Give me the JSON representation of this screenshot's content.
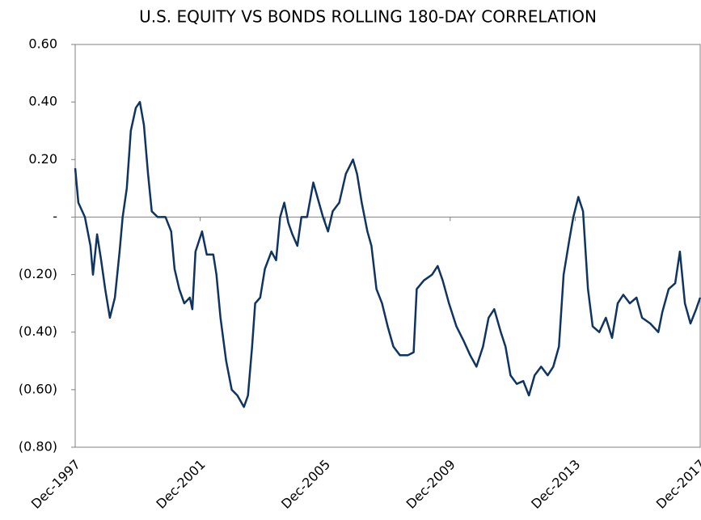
{
  "chart_data": {
    "type": "line",
    "title": "U.S. EQUITY VS BONDS ROLLING 180-DAY CORRELATION",
    "x": [
      1997.92,
      1998.02,
      1998.23,
      1998.41,
      1998.49,
      1998.62,
      1998.75,
      1998.88,
      1999.03,
      1999.19,
      1999.34,
      1999.44,
      1999.57,
      1999.7,
      1999.86,
      1999.99,
      2000.12,
      2000.25,
      2000.37,
      2000.56,
      2000.81,
      2000.99,
      2001.1,
      2001.25,
      2001.41,
      2001.59,
      2001.67,
      2001.77,
      2001.98,
      2002.13,
      2002.34,
      2002.44,
      2002.57,
      2002.75,
      2002.93,
      2003.11,
      2003.32,
      2003.45,
      2003.58,
      2003.68,
      2003.84,
      2003.99,
      2004.2,
      2004.35,
      2004.48,
      2004.61,
      2004.74,
      2004.87,
      2005.03,
      2005.16,
      2005.34,
      2005.54,
      2005.72,
      2005.85,
      2006.01,
      2006.16,
      2006.37,
      2006.58,
      2006.81,
      2006.94,
      2007.09,
      2007.27,
      2007.4,
      2007.56,
      2007.74,
      2007.92,
      2008.1,
      2008.31,
      2008.57,
      2008.75,
      2008.85,
      2009.08,
      2009.34,
      2009.52,
      2009.68,
      2009.88,
      2010.12,
      2010.35,
      2010.56,
      2010.76,
      2010.97,
      2011.15,
      2011.33,
      2011.54,
      2011.69,
      2011.85,
      2012.05,
      2012.26,
      2012.44,
      2012.62,
      2012.83,
      2013.04,
      2013.22,
      2013.4,
      2013.55,
      2013.73,
      2013.86,
      2014.02,
      2014.17,
      2014.33,
      2014.48,
      2014.69,
      2014.9,
      2015.1,
      2015.28,
      2015.46,
      2015.67,
      2015.88,
      2016.06,
      2016.32,
      2016.58,
      2016.71,
      2016.91,
      2017.12,
      2017.27,
      2017.43,
      2017.61,
      2017.79,
      2017.92
    ],
    "series": [
      {
        "color": "#0f3461",
        "values": [
          0.17,
          0.05,
          0.0,
          -0.1,
          -0.2,
          -0.06,
          -0.15,
          -0.25,
          -0.35,
          -0.28,
          -0.12,
          0.0,
          0.1,
          0.3,
          0.38,
          0.4,
          0.32,
          0.15,
          0.02,
          0.0,
          0.0,
          -0.05,
          -0.18,
          -0.25,
          -0.3,
          -0.28,
          -0.32,
          -0.12,
          -0.05,
          -0.13,
          -0.13,
          -0.2,
          -0.35,
          -0.5,
          -0.6,
          -0.62,
          -0.66,
          -0.62,
          -0.45,
          -0.3,
          -0.28,
          -0.18,
          -0.12,
          -0.15,
          0.0,
          0.05,
          -0.02,
          -0.06,
          -0.1,
          0.0,
          0.0,
          0.12,
          0.05,
          0.0,
          -0.05,
          0.02,
          0.05,
          0.15,
          0.2,
          0.15,
          0.05,
          -0.05,
          -0.1,
          -0.25,
          -0.3,
          -0.38,
          -0.45,
          -0.48,
          -0.48,
          -0.47,
          -0.25,
          -0.22,
          -0.2,
          -0.17,
          -0.22,
          -0.3,
          -0.38,
          -0.43,
          -0.48,
          -0.52,
          -0.45,
          -0.35,
          -0.32,
          -0.4,
          -0.45,
          -0.55,
          -0.58,
          -0.57,
          -0.62,
          -0.55,
          -0.52,
          -0.55,
          -0.52,
          -0.45,
          -0.2,
          -0.08,
          0.0,
          0.07,
          0.02,
          -0.25,
          -0.38,
          -0.4,
          -0.35,
          -0.42,
          -0.3,
          -0.27,
          -0.3,
          -0.28,
          -0.35,
          -0.37,
          -0.4,
          -0.33,
          -0.25,
          -0.23,
          -0.12,
          -0.3,
          -0.37,
          -0.32,
          -0.28
        ]
      }
    ],
    "xlim": [
      1997.92,
      2017.92
    ],
    "xticks": [
      {
        "value": 1997.92,
        "label": "Dec-1997"
      },
      {
        "value": 2001.92,
        "label": "Dec-2001"
      },
      {
        "value": 2005.92,
        "label": "Dec-2005"
      },
      {
        "value": 2009.92,
        "label": "Dec-2009"
      },
      {
        "value": 2013.92,
        "label": "Dec-2013"
      },
      {
        "value": 2017.92,
        "label": "Dec-2017"
      }
    ],
    "ylim": [
      -0.8,
      0.6
    ],
    "yticks": [
      {
        "value": -0.8,
        "label": "(0.80)"
      },
      {
        "value": -0.6,
        "label": "(0.60)"
      },
      {
        "value": -0.4,
        "label": "(0.40)"
      },
      {
        "value": -0.2,
        "label": "(0.20)"
      },
      {
        "value": 0,
        "label": "-"
      },
      {
        "value": 0.2,
        "label": "0.20"
      },
      {
        "value": 0.4,
        "label": "0.40"
      },
      {
        "value": 0.6,
        "label": "0.60"
      }
    ]
  }
}
